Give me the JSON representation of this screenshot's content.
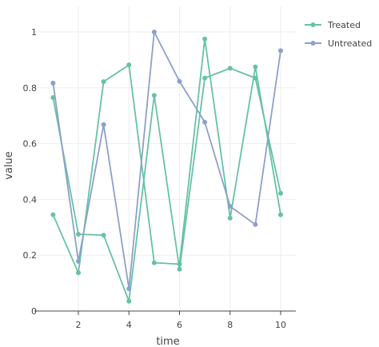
{
  "chart_data": {
    "type": "line",
    "xlabel": "time",
    "ylabel": "value",
    "xlim": [
      0.6,
      10.4
    ],
    "ylim": [
      0,
      1.05
    ],
    "xticks": [
      2,
      4,
      6,
      8,
      10
    ],
    "yticks": [
      0,
      0.2,
      0.4,
      0.6,
      0.8,
      1
    ],
    "grid": true,
    "legend_position": "top-right",
    "series": [
      {
        "name": "Treated",
        "color": "#66c2a5",
        "points": [
          [
            1,
            0.765
          ],
          [
            2,
            0.275
          ],
          [
            3,
            0.272
          ],
          [
            4,
            0.035
          ],
          [
            5,
            0.773
          ],
          [
            6,
            0.15
          ],
          [
            7,
            0.835
          ],
          [
            8,
            0.87
          ],
          [
            9,
            0.835
          ],
          [
            10,
            0.422
          ]
        ]
      },
      {
        "name": "Treated",
        "color": "#66c2a5",
        "points": [
          [
            1,
            0.345
          ],
          [
            2,
            0.137
          ],
          [
            3,
            0.822
          ],
          [
            4,
            0.882
          ],
          [
            5,
            0.173
          ],
          [
            6,
            0.168
          ],
          [
            7,
            0.975
          ],
          [
            8,
            0.333
          ],
          [
            9,
            0.875
          ],
          [
            10,
            0.345
          ]
        ]
      },
      {
        "name": "Untreated",
        "color": "#8da0cb",
        "points": [
          [
            1,
            0.817
          ],
          [
            2,
            0.178
          ],
          [
            3,
            0.668
          ],
          [
            4,
            0.08
          ],
          [
            5,
            1.0
          ],
          [
            6,
            0.823
          ],
          [
            7,
            0.677
          ],
          [
            8,
            0.375
          ],
          [
            9,
            0.31
          ],
          [
            10,
            0.933
          ]
        ]
      }
    ],
    "legend": [
      {
        "label": "Treated",
        "color": "#66c2a5"
      },
      {
        "label": "Untreated",
        "color": "#8da0cb"
      }
    ]
  }
}
